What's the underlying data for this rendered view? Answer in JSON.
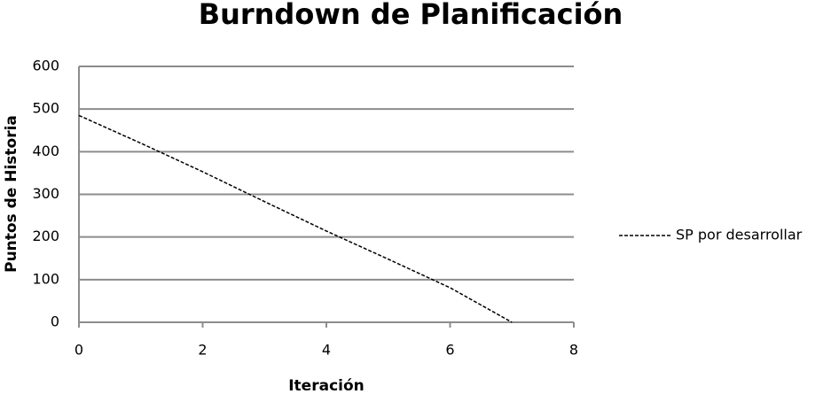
{
  "chart_data": {
    "type": "line",
    "title": "Burndown de Planificación",
    "x_label": "Iteración",
    "y_label": "Puntos de Historia",
    "x": [
      0,
      1,
      2,
      3,
      4,
      5,
      6,
      7
    ],
    "series": [
      {
        "name": "SP por desarrollar",
        "color": "#000000",
        "values": [
          485,
          420,
          353,
          283,
          214,
          148,
          81,
          0
        ]
      }
    ],
    "xlim": [
      0,
      8
    ],
    "xticks": [
      0,
      2,
      4,
      6,
      8
    ],
    "ylim": [
      0,
      600
    ],
    "yticks": [
      0,
      100,
      200,
      300,
      400,
      500,
      600
    ],
    "grid": true,
    "legend": "right"
  }
}
